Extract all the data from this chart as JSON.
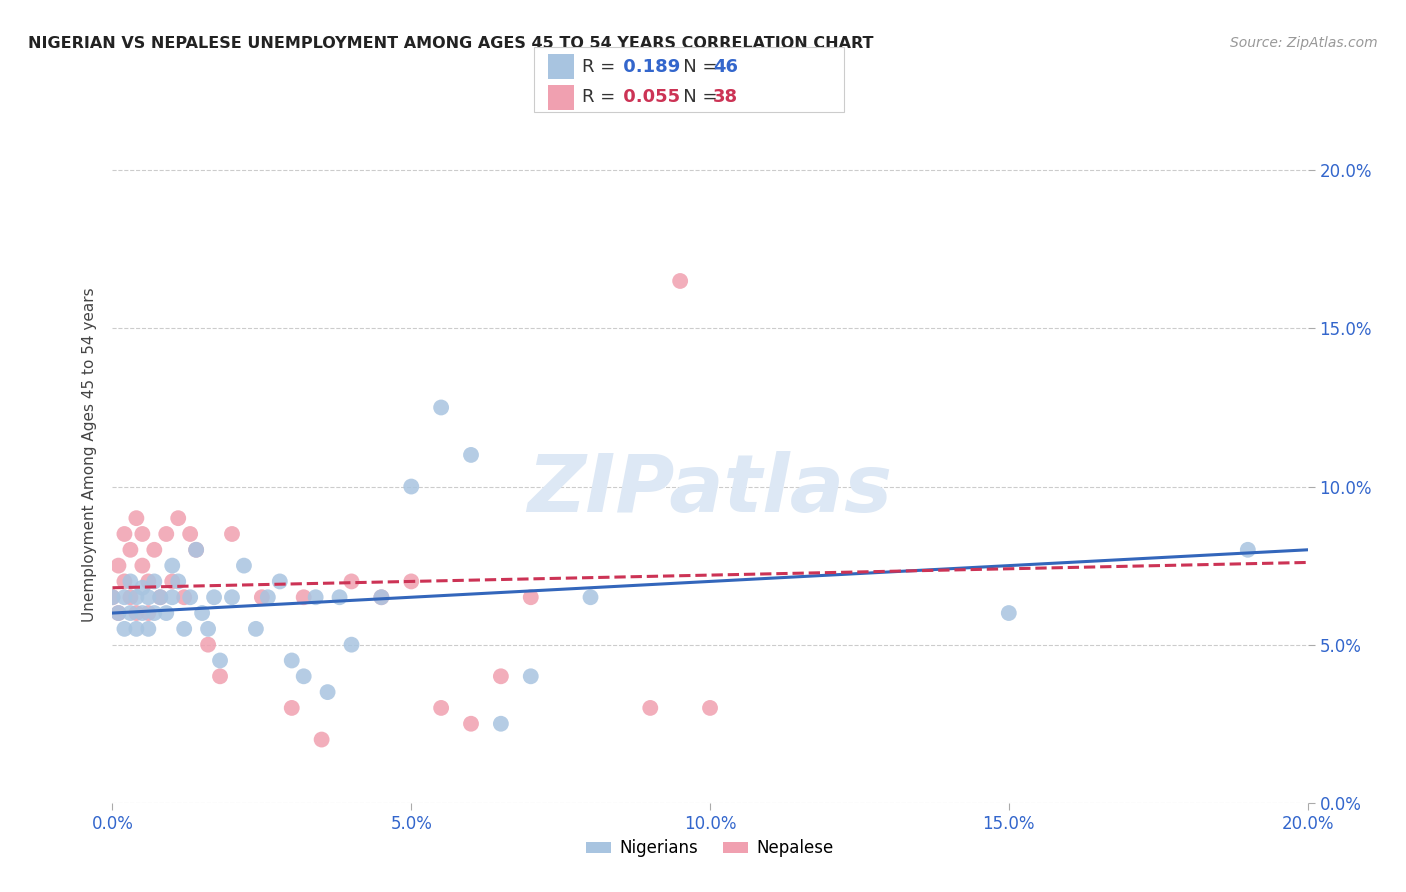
{
  "title": "NIGERIAN VS NEPALESE UNEMPLOYMENT AMONG AGES 45 TO 54 YEARS CORRELATION CHART",
  "source": "Source: ZipAtlas.com",
  "ylabel": "Unemployment Among Ages 45 to 54 years",
  "xlim": [
    0.0,
    0.2
  ],
  "ylim": [
    0.0,
    0.22
  ],
  "grid_color": "#cccccc",
  "background_color": "#ffffff",
  "nigerian_color": "#a8c4e0",
  "nepalese_color": "#f0a0b0",
  "nigerian_line_color": "#3366bb",
  "nepalese_line_color": "#cc3355",
  "nigerian_R": 0.189,
  "nigerian_N": 46,
  "nepalese_R": 0.055,
  "nepalese_N": 38,
  "nigerian_x": [
    0.0,
    0.001,
    0.002,
    0.002,
    0.003,
    0.003,
    0.004,
    0.004,
    0.005,
    0.005,
    0.006,
    0.006,
    0.007,
    0.007,
    0.008,
    0.009,
    0.01,
    0.01,
    0.011,
    0.012,
    0.013,
    0.014,
    0.015,
    0.016,
    0.017,
    0.018,
    0.02,
    0.022,
    0.024,
    0.026,
    0.028,
    0.03,
    0.032,
    0.034,
    0.036,
    0.038,
    0.04,
    0.045,
    0.05,
    0.055,
    0.06,
    0.065,
    0.07,
    0.08,
    0.15,
    0.19
  ],
  "nigerian_y": [
    0.065,
    0.06,
    0.065,
    0.055,
    0.06,
    0.07,
    0.055,
    0.065,
    0.06,
    0.068,
    0.055,
    0.065,
    0.06,
    0.07,
    0.065,
    0.06,
    0.075,
    0.065,
    0.07,
    0.055,
    0.065,
    0.08,
    0.06,
    0.055,
    0.065,
    0.045,
    0.065,
    0.075,
    0.055,
    0.065,
    0.07,
    0.045,
    0.04,
    0.065,
    0.035,
    0.065,
    0.05,
    0.065,
    0.1,
    0.125,
    0.11,
    0.025,
    0.04,
    0.065,
    0.06,
    0.08
  ],
  "nepalese_x": [
    0.0,
    0.001,
    0.001,
    0.002,
    0.002,
    0.003,
    0.003,
    0.004,
    0.004,
    0.005,
    0.005,
    0.006,
    0.006,
    0.007,
    0.008,
    0.009,
    0.01,
    0.011,
    0.012,
    0.013,
    0.014,
    0.016,
    0.018,
    0.02,
    0.025,
    0.03,
    0.032,
    0.035,
    0.04,
    0.045,
    0.05,
    0.055,
    0.06,
    0.065,
    0.07,
    0.09,
    0.095,
    0.1
  ],
  "nepalese_y": [
    0.065,
    0.06,
    0.075,
    0.07,
    0.085,
    0.065,
    0.08,
    0.09,
    0.06,
    0.075,
    0.085,
    0.07,
    0.06,
    0.08,
    0.065,
    0.085,
    0.07,
    0.09,
    0.065,
    0.085,
    0.08,
    0.05,
    0.04,
    0.085,
    0.065,
    0.03,
    0.065,
    0.02,
    0.07,
    0.065,
    0.07,
    0.03,
    0.025,
    0.04,
    0.065,
    0.03,
    0.165,
    0.03
  ],
  "nigerian_line_x": [
    0.0,
    0.2
  ],
  "nigerian_line_y": [
    0.06,
    0.08
  ],
  "nepalese_line_x": [
    0.0,
    0.1
  ],
  "nepalese_line_y": [
    0.068,
    0.072
  ]
}
